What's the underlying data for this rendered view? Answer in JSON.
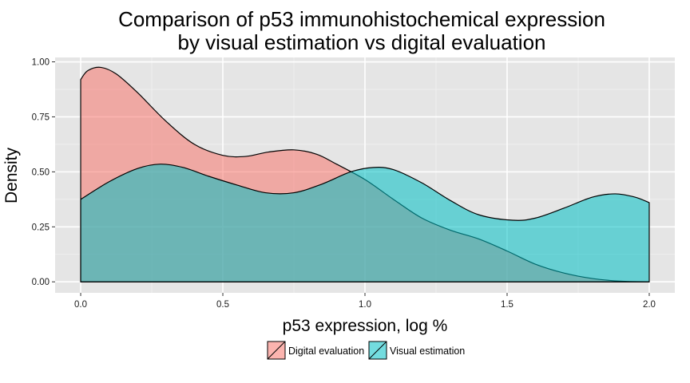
{
  "chart_data": {
    "type": "area",
    "title_line1": "Comparison of p53 immunohistochemical expression",
    "title_line2": "by visual estimation vs digital evaluation",
    "xlabel": "p53 expression, log %",
    "ylabel": "Density",
    "xlim": [
      -0.09,
      2.09
    ],
    "ylim": [
      -0.05,
      1.02
    ],
    "x_ticks": [
      0.0,
      0.5,
      1.0,
      1.5,
      2.0
    ],
    "x_tick_labels": [
      "0.0",
      "0.5",
      "1.0",
      "1.5",
      "2.0"
    ],
    "y_ticks": [
      0.0,
      0.25,
      0.5,
      0.75,
      1.0
    ],
    "y_tick_labels": [
      "0.00",
      "0.25",
      "0.50",
      "0.75",
      "1.00"
    ],
    "grid": true,
    "legend_position": "bottom",
    "series": [
      {
        "name": "Digital evaluation",
        "color": "#F8766D",
        "points": [
          [
            0.0,
            0.92
          ],
          [
            0.025,
            0.96
          ],
          [
            0.07,
            0.975
          ],
          [
            0.125,
            0.945
          ],
          [
            0.2,
            0.86
          ],
          [
            0.3,
            0.73
          ],
          [
            0.4,
            0.625
          ],
          [
            0.5,
            0.575
          ],
          [
            0.58,
            0.57
          ],
          [
            0.66,
            0.59
          ],
          [
            0.75,
            0.6
          ],
          [
            0.83,
            0.58
          ],
          [
            0.9,
            0.535
          ],
          [
            1.0,
            0.465
          ],
          [
            1.1,
            0.375
          ],
          [
            1.2,
            0.29
          ],
          [
            1.3,
            0.235
          ],
          [
            1.4,
            0.195
          ],
          [
            1.5,
            0.14
          ],
          [
            1.6,
            0.08
          ],
          [
            1.7,
            0.04
          ],
          [
            1.8,
            0.015
          ],
          [
            1.9,
            0.003
          ],
          [
            2.0,
            0.0
          ]
        ]
      },
      {
        "name": "Visual estimation",
        "color": "#00BFC4",
        "points": [
          [
            0.0,
            0.375
          ],
          [
            0.1,
            0.455
          ],
          [
            0.2,
            0.515
          ],
          [
            0.28,
            0.535
          ],
          [
            0.36,
            0.52
          ],
          [
            0.45,
            0.48
          ],
          [
            0.55,
            0.44
          ],
          [
            0.65,
            0.405
          ],
          [
            0.75,
            0.405
          ],
          [
            0.85,
            0.445
          ],
          [
            0.95,
            0.5
          ],
          [
            1.03,
            0.52
          ],
          [
            1.1,
            0.51
          ],
          [
            1.2,
            0.45
          ],
          [
            1.3,
            0.37
          ],
          [
            1.4,
            0.305
          ],
          [
            1.52,
            0.28
          ],
          [
            1.6,
            0.29
          ],
          [
            1.7,
            0.335
          ],
          [
            1.8,
            0.385
          ],
          [
            1.88,
            0.4
          ],
          [
            1.95,
            0.385
          ],
          [
            2.0,
            0.36
          ]
        ]
      }
    ]
  }
}
